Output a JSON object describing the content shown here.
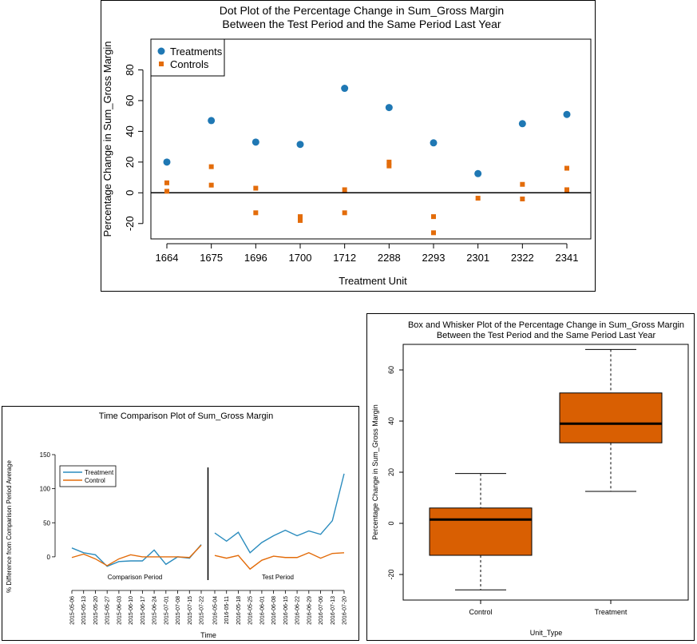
{
  "chart_data": [
    {
      "type": "scatter",
      "title": "Dot Plot of the Percentage Change in Sum_Gross Margin",
      "subtitle": "Between the Test Period and the Same Period Last Year",
      "xlabel": "Treatment Unit",
      "ylabel": "Percentage Change in Sum_Gross Margin",
      "categories": [
        "1664",
        "1675",
        "1696",
        "1700",
        "1712",
        "2288",
        "2293",
        "2301",
        "2322",
        "2341"
      ],
      "ylim": [
        -30,
        100
      ],
      "yticks": [
        -20,
        0,
        20,
        40,
        60,
        80
      ],
      "ytick_labels": [
        "-20",
        "0",
        "20",
        "40",
        "60",
        "80"
      ],
      "legend_position": "top-left",
      "series": [
        {
          "name": "Treatments",
          "color": "#1f78b4",
          "marker": "circle",
          "values": [
            20,
            47,
            33,
            31.5,
            68,
            55.5,
            32.5,
            12.5,
            45,
            51
          ]
        },
        {
          "name": "Controls",
          "color": "#e36c0a",
          "marker": "square",
          "points": [
            [
              0,
              6.5
            ],
            [
              0,
              1
            ],
            [
              1,
              17
            ],
            [
              1,
              5
            ],
            [
              2,
              3
            ],
            [
              2,
              -13
            ],
            [
              3,
              -15.5
            ],
            [
              3,
              -18
            ],
            [
              4,
              2
            ],
            [
              4,
              -13
            ],
            [
              5,
              20
            ],
            [
              5,
              17.5
            ],
            [
              6,
              -15.5
            ],
            [
              6,
              -26
            ],
            [
              7,
              -3.5
            ],
            [
              8,
              5.5
            ],
            [
              8,
              -4
            ],
            [
              9,
              16
            ],
            [
              9,
              2
            ]
          ]
        }
      ]
    },
    {
      "type": "line",
      "title": "Time Comparison Plot of Sum_Gross Margin",
      "xlabel": "Time",
      "ylabel": "% Difference from Comparison Period Average",
      "ylim": [
        -40,
        150
      ],
      "yticks": [
        0,
        50,
        100,
        150
      ],
      "period_labels": [
        "Comparison Period",
        "Test Period"
      ],
      "legend_position": "top-left",
      "x": [
        "2015-05-06",
        "2015-05-13",
        "2015-05-20",
        "2015-05-27",
        "2015-06-03",
        "2015-06-10",
        "2015-06-17",
        "2015-06-24",
        "2015-07-01",
        "2015-07-08",
        "2015-07-15",
        "2015-07-22",
        "2016-05-04",
        "2016-05-11",
        "2016-05-18",
        "2016-05-25",
        "2016-06-01",
        "2016-06-08",
        "2016-06-15",
        "2016-06-22",
        "2016-06-29",
        "2016-07-06",
        "2016-07-13",
        "2016-07-20"
      ],
      "series": [
        {
          "name": "Treatment",
          "color": "#2b8cbe",
          "values": [
            13,
            6,
            3,
            -14,
            -7,
            -6,
            -6,
            10,
            -11,
            0,
            -2,
            18,
            35,
            23,
            36,
            6,
            21,
            31,
            39,
            31,
            38,
            33,
            53,
            122
          ]
        },
        {
          "name": "Control",
          "color": "#e36c0a",
          "values": [
            -1,
            4,
            -3,
            -13,
            -3,
            3,
            0,
            0,
            0,
            0,
            -1,
            17,
            2,
            -2,
            2,
            -18,
            -5,
            1,
            -1,
            -1,
            6,
            -2,
            5,
            6
          ]
        }
      ]
    },
    {
      "type": "box",
      "title": "Box and Whisker Plot of the Percentage Change in Sum_Gross Margin",
      "subtitle": "Between the Test Period and the Same Period Last Year",
      "xlabel": "Unit_Type",
      "ylabel": "Percentage Change in Sum_Gross Margin",
      "ylim": [
        -30,
        70
      ],
      "yticks": [
        -20,
        0,
        20,
        40,
        60
      ],
      "ytick_labels": [
        "-20",
        "0",
        "20",
        "40",
        "60"
      ],
      "box_color": "#d95f02",
      "boxes": [
        {
          "name": "Control",
          "min": -26,
          "q1": -12.5,
          "median": 1.5,
          "q3": 6,
          "max": 19.5
        },
        {
          "name": "Treatment",
          "min": 12.5,
          "q1": 31.5,
          "median": 39,
          "q3": 51,
          "max": 68
        }
      ]
    }
  ]
}
